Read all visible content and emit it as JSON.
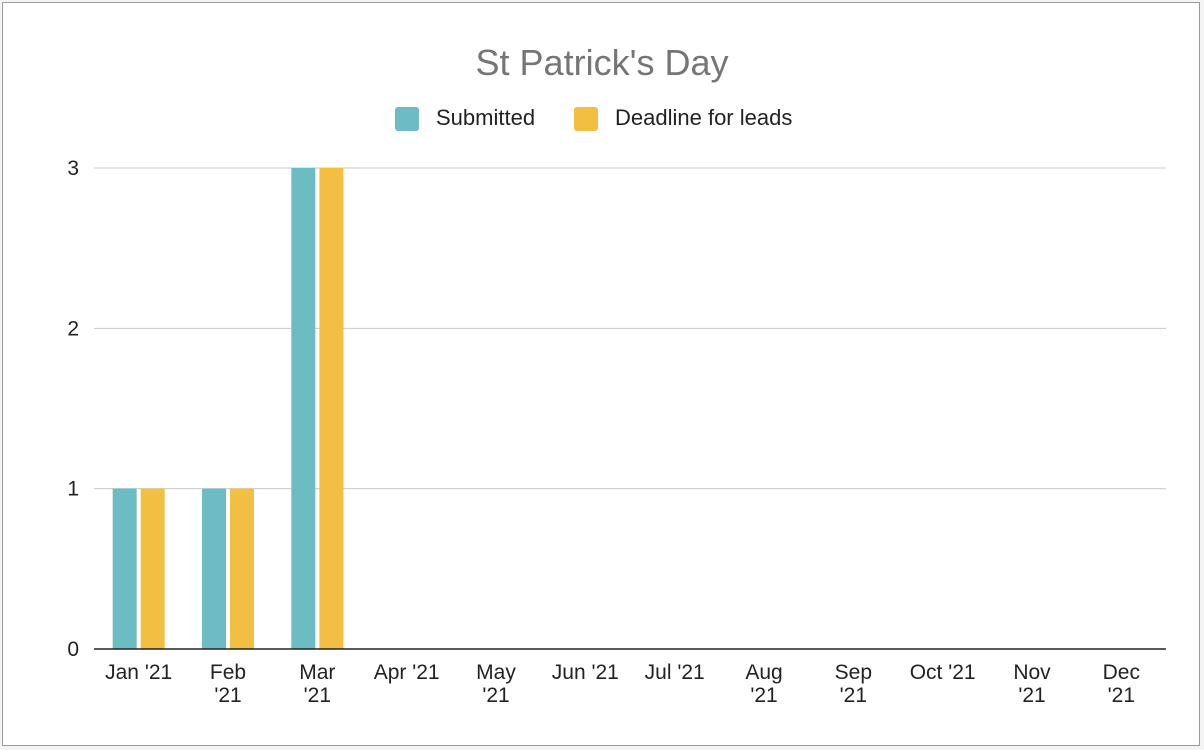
{
  "chart_data": {
    "type": "bar",
    "title": "St Patrick's Day",
    "xlabel": "",
    "ylabel": "",
    "categories": [
      [
        "Jan '21"
      ],
      [
        "Feb",
        "'21"
      ],
      [
        "Mar",
        "'21"
      ],
      [
        "Apr '21"
      ],
      [
        "May",
        "'21"
      ],
      [
        "Jun '21"
      ],
      [
        "Jul '21"
      ],
      [
        "Aug",
        "'21"
      ],
      [
        "Sep",
        "'21"
      ],
      [
        "Oct '21"
      ],
      [
        "Nov",
        "'21"
      ],
      [
        "Dec",
        "'21"
      ]
    ],
    "series": [
      {
        "name": "Submitted",
        "color": "#6cbcc3",
        "values": [
          1,
          1,
          3,
          0,
          0,
          0,
          0,
          0,
          0,
          0,
          0,
          0
        ]
      },
      {
        "name": "Deadline for leads",
        "color": "#f2bf42",
        "values": [
          1,
          1,
          3,
          0,
          0,
          0,
          0,
          0,
          0,
          0,
          0,
          0
        ]
      }
    ],
    "ylim": [
      0,
      3
    ],
    "yticks": [
      "0",
      "1",
      "2",
      "3"
    ],
    "grid": true,
    "legend_position": "top"
  }
}
